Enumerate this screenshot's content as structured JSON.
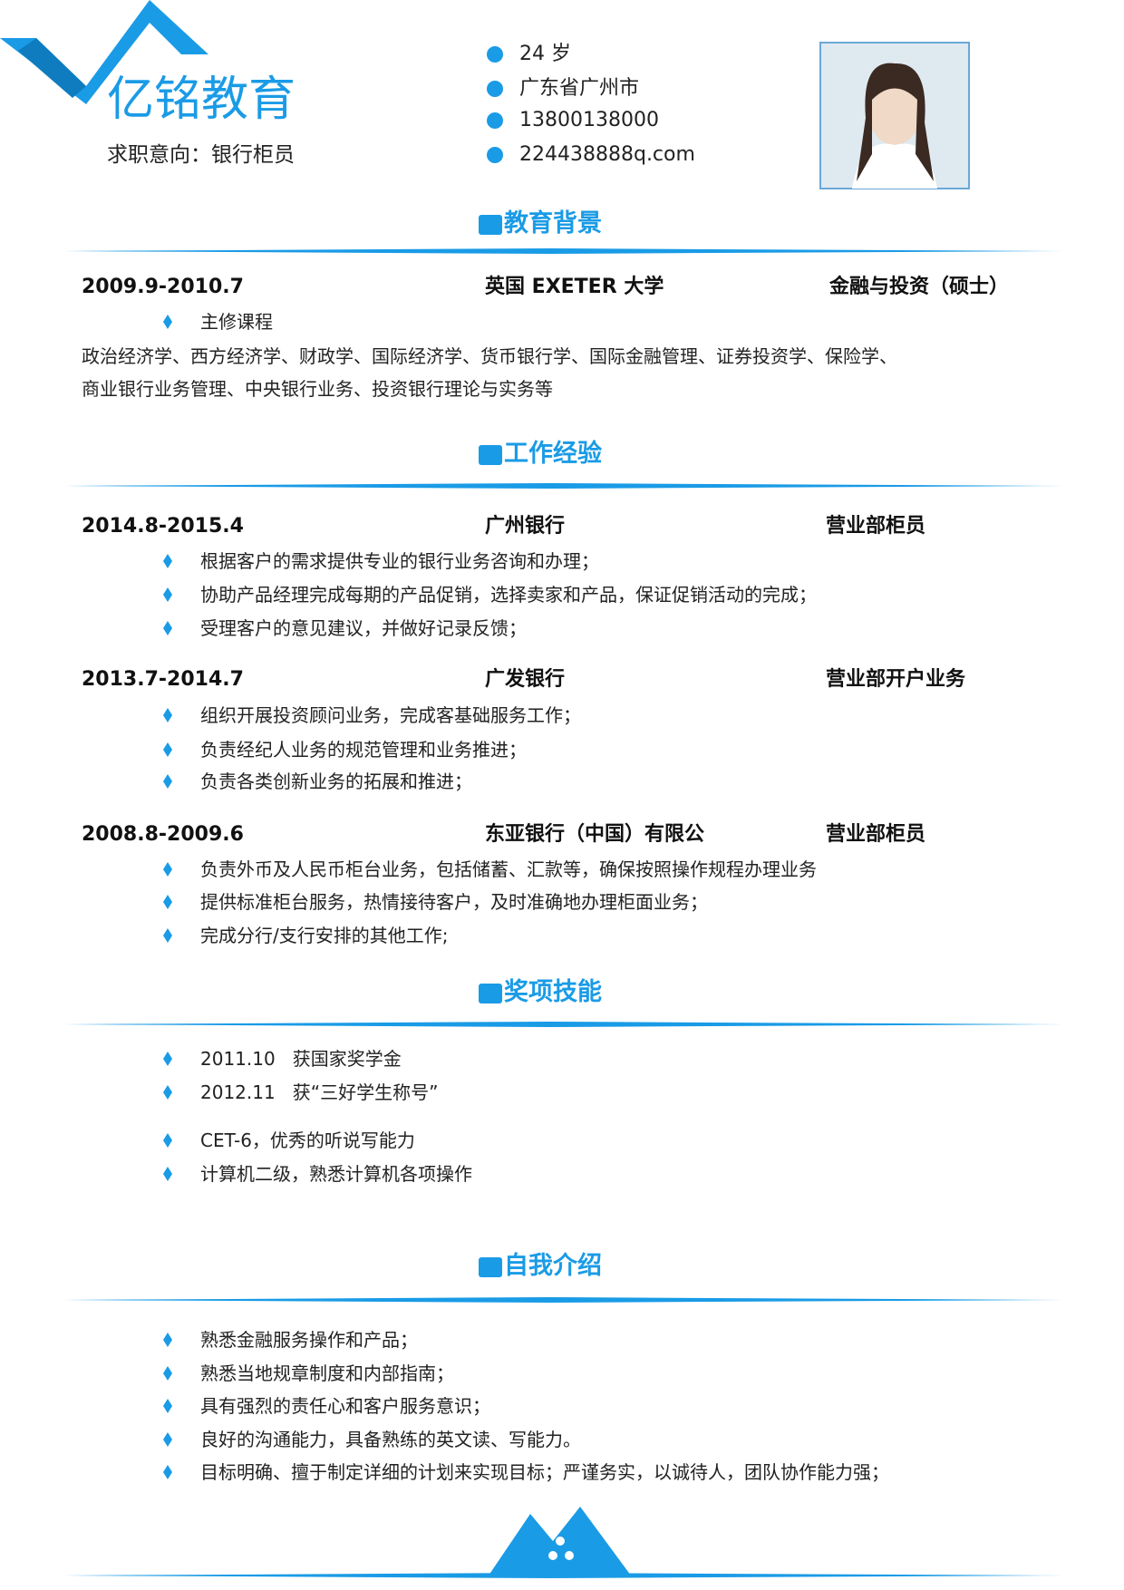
{
  "header": {
    "name": "亿铭教育",
    "intent": "求职意向：银行柜员",
    "info": [
      "24 岁",
      "广东省广州市",
      "13800138000",
      "224438888q.com"
    ]
  },
  "education": {
    "title": "教育背景",
    "date": "2009.9-2010.7",
    "school": "英国 EXETER 大学",
    "degree": "金融与投资（硕士）",
    "course_label": "主修课程",
    "courses": [
      "政治经济学、西方经济学、财政学、国际经济学、货币银行学、国际金融管理、证券投资学、保险学、",
      "商业银行业务管理、中央银行业务、投资银行理论与实务等"
    ]
  },
  "work": {
    "title": "工作经验",
    "jobs": [
      {
        "date": "2014.8-2015.4",
        "company": "广州银行",
        "role": "营业部柜员",
        "duties": [
          "根据客户的需求提供专业的银行业务咨询和办理；",
          "协助产品经理完成每期的产品促销，选择卖家和产品，保证促销活动的完成；",
          "受理客户的意见建议，并做好记录反馈；"
        ]
      },
      {
        "date": "2013.7-2014.7",
        "company": "广发银行",
        "role": "营业部开户业务",
        "duties": [
          "组织开展投资顾问业务，完成客基础服务工作；",
          "负责经纪人业务的规范管理和业务推进；",
          "负责各类创新业务的拓展和推进；"
        ]
      },
      {
        "date": "2008.8-2009.6",
        "company": "东亚银行（中国）有限公",
        "role": "营业部柜员",
        "duties": [
          "负责外币及人民币柜台业务，包括储蓄、汇款等，确保按照操作规程办理业务",
          "提供标准柜台服务，热情接待客户，及时准确地办理柜面业务；",
          "完成分行/支行安排的其他工作;"
        ]
      }
    ]
  },
  "awards": {
    "title": "奖项技能",
    "items": [
      "2011.10   获国家奖学金",
      "2012.11   获“三好学生称号”",
      "CET-6，优秀的听说写能力",
      "计算机二级，熟悉计算机各项操作"
    ]
  },
  "self_intro": {
    "title": "自我介绍",
    "items": [
      "熟悉金融服务操作和产品；",
      "熟悉当地规章制度和内部指南；",
      "具有强烈的责任心和客户服务意识；",
      "良好的沟通能力，具备熟练的英文读、写能力。",
      "目标明确、擅于制定详细的计划来实现目标；严谨务实，以诚待人，团队协作能力强；"
    ]
  }
}
